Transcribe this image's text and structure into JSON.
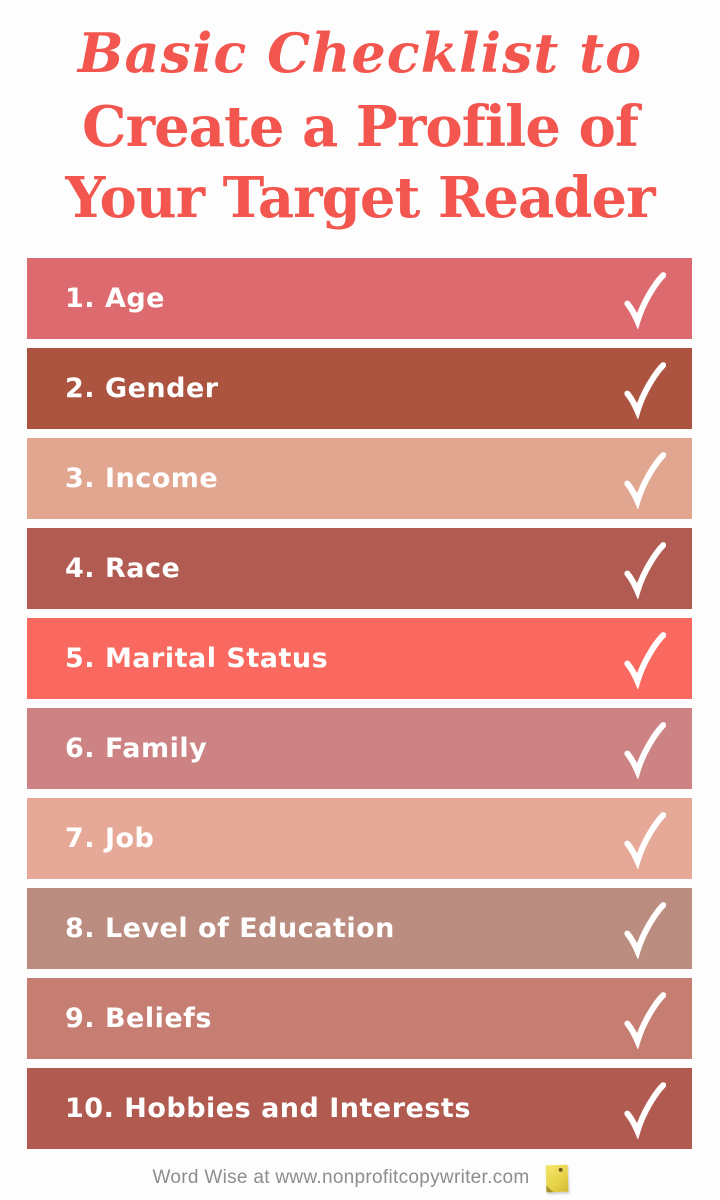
{
  "page": {
    "background": "#fdfdfd"
  },
  "title": {
    "script_line": "Basic Checklist to",
    "bold_line1": "Create a Profile of",
    "bold_line2": "Your Target Reader",
    "color": "#f3564f"
  },
  "checklist": {
    "check_icon": "checkmark-icon",
    "check_color": "#ffffff",
    "label_color": "#ffffff",
    "items": [
      {
        "label": "1. Age",
        "color": "#dd6a6e"
      },
      {
        "label": "2. Gender",
        "color": "#ad5441"
      },
      {
        "label": "3. Income",
        "color": "#e1a68f"
      },
      {
        "label": "4. Race",
        "color": "#b25b52"
      },
      {
        "label": "5. Marital Status",
        "color": "#f9695f"
      },
      {
        "label": "6. Family",
        "color": "#cd8383"
      },
      {
        "label": "7. Job",
        "color": "#e6a998"
      },
      {
        "label": "8. Level of Education",
        "color": "#bb8d80"
      },
      {
        "label": "9. Beliefs",
        "color": "#c67d72"
      },
      {
        "label": "10. Hobbies and Interests",
        "color": "#b15a50"
      }
    ]
  },
  "footer": {
    "credit": "Word Wise at www.nonprofitcopywriter.com",
    "note_icon": "sticky-note-icon",
    "note_color": "#e8d44a",
    "credit_color": "#8d8d8d"
  }
}
